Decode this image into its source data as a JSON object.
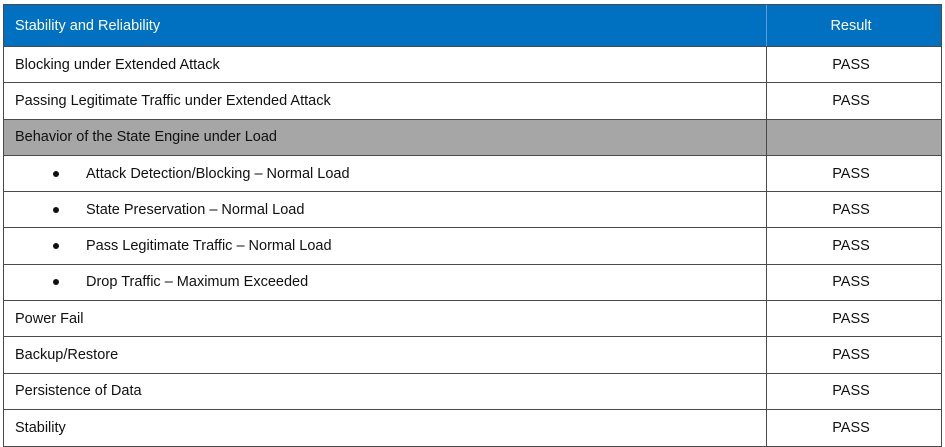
{
  "table": {
    "header": {
      "label": "Stability and Reliability",
      "result": "Result"
    },
    "rows": [
      {
        "label": "Blocking under Extended Attack",
        "result": "PASS"
      },
      {
        "label": "Passing Legitimate Traffic under Extended Attack",
        "result": "PASS"
      },
      {
        "label": "Behavior of the State Engine under Load",
        "result": ""
      },
      {
        "label": "Attack Detection/Blocking – Normal Load",
        "result": "PASS"
      },
      {
        "label": "State Preservation – Normal Load",
        "result": "PASS"
      },
      {
        "label": "Pass Legitimate Traffic – Normal Load",
        "result": "PASS"
      },
      {
        "label": "Drop Traffic – Maximum Exceeded",
        "result": "PASS"
      },
      {
        "label": "Power Fail",
        "result": "PASS"
      },
      {
        "label": "Backup/Restore",
        "result": "PASS"
      },
      {
        "label": "Persistence of Data",
        "result": "PASS"
      },
      {
        "label": "Stability",
        "result": "PASS"
      }
    ]
  },
  "colors": {
    "header_bg": "#0070c0",
    "group_bg": "#a6a6a6"
  }
}
